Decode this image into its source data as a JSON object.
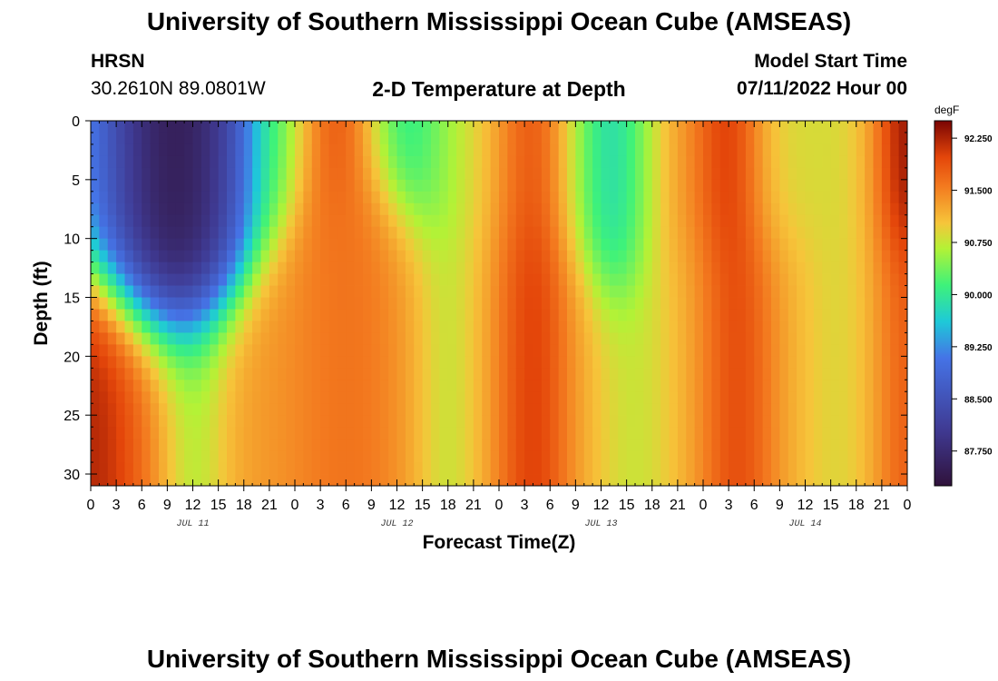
{
  "header": {
    "title": "University of Southern Mississippi Ocean Cube (AMSEAS)",
    "station_name": "HRSN",
    "coordinates": "30.2610N  89.0801W",
    "subtitle": "2-D Temperature at Depth",
    "model_start_label": "Model Start Time",
    "model_start_value": "07/11/2022 Hour 00"
  },
  "footer": {
    "title": "University of Southern Mississippi Ocean Cube (AMSEAS)"
  },
  "chart_data": {
    "type": "heatmap",
    "title": "2-D Temperature at Depth",
    "xlabel": "Forecast Time(Z)",
    "ylabel": "Depth (ft)",
    "xlim": [
      0,
      96
    ],
    "ylim": [
      31,
      0
    ],
    "x_ticks": [
      0,
      3,
      6,
      9,
      12,
      15,
      18,
      21,
      24,
      27,
      30,
      33,
      36,
      39,
      42,
      45,
      48,
      51,
      54,
      57,
      60,
      63,
      66,
      69,
      72,
      75,
      78,
      81,
      84,
      87,
      90,
      93,
      96
    ],
    "x_tick_labels": [
      "0",
      "3",
      "6",
      "9",
      "12",
      "15",
      "18",
      "21",
      "0",
      "3",
      "6",
      "9",
      "12",
      "15",
      "18",
      "21",
      "0",
      "3",
      "6",
      "9",
      "12",
      "15",
      "18",
      "21",
      "0",
      "3",
      "6",
      "9",
      "12",
      "15",
      "18",
      "21",
      "0"
    ],
    "y_ticks": [
      0,
      5,
      10,
      15,
      20,
      25,
      30
    ],
    "y_tick_labels": [
      "0",
      "5",
      "10",
      "15",
      "20",
      "25",
      "30"
    ],
    "day_labels": [
      {
        "hour": 12,
        "label": "JUL 11"
      },
      {
        "hour": 36,
        "label": "JUL 12"
      },
      {
        "hour": 60,
        "label": "JUL 13"
      },
      {
        "hour": 84,
        "label": "JUL 14"
      }
    ],
    "colorbar": {
      "unit": "degF",
      "min": 87.25,
      "max": 92.5,
      "ticks": [
        92.25,
        91.5,
        90.75,
        90.0,
        89.25,
        88.5,
        87.75
      ],
      "tick_labels": [
        "92.250",
        "91.500",
        "90.750",
        "90.000",
        "89.250",
        "88.500",
        "87.750"
      ]
    },
    "grid": false,
    "description_of_field": "Temperature (degF) by forecast hour (x) and depth in ft (y); coldest (~87.5) near surface at hours 0-24, warm (~92) at depth early and in bands near hours 27-33, 48-54, 69-78, 93-96."
  }
}
